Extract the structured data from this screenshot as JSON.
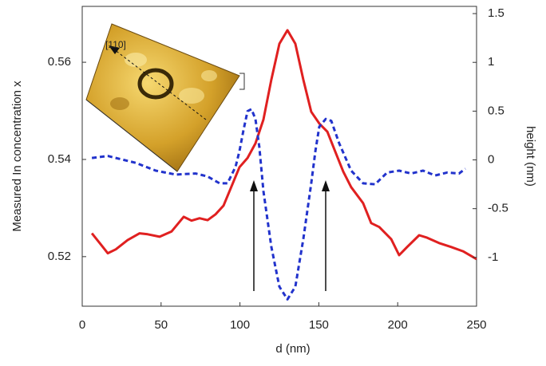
{
  "chart_data": {
    "type": "line",
    "xlabel": "d (nm)",
    "ylabel": "Measured In concentration x",
    "y2label": "height (nm)",
    "annotations": [
      "[110]"
    ],
    "xlim": [
      0,
      250
    ],
    "xticks": [
      0,
      50,
      100,
      150,
      200,
      250
    ],
    "ylim": [
      0.5098,
      0.5715
    ],
    "yticks": [
      0.52,
      0.54,
      0.56
    ],
    "y2lim": [
      -1.5,
      1.574
    ],
    "y2ticks": [
      -1,
      -0.5,
      0,
      0.5,
      1,
      1.5
    ],
    "grid": false,
    "series": [
      {
        "color": "#e02020",
        "line_style": "solid",
        "x": [
          6.1,
          11.1,
          16.2,
          21.3,
          28.8,
          36.4,
          41.5,
          49.1,
          56.7,
          64.3,
          69.3,
          74.4,
          79.5,
          84.5,
          89.6,
          94.6,
          99.7,
          104.8,
          109.8,
          114.9,
          119.9,
          125.0,
          130.1,
          135.1,
          140.2,
          145.2,
          150.3,
          155.4,
          160.4,
          165.5,
          170.5,
          178.1,
          183.2,
          188.3,
          195.9,
          200.9,
          206.0,
          213.6,
          218.6,
          226.2,
          233.8,
          241.4,
          250
        ],
        "values": [
          0.5248,
          0.5228,
          0.5207,
          0.5215,
          0.5234,
          0.5248,
          0.5246,
          0.5241,
          0.5252,
          0.5282,
          0.5274,
          0.5279,
          0.5275,
          0.5287,
          0.5305,
          0.5344,
          0.5384,
          0.5403,
          0.5433,
          0.5482,
          0.5564,
          0.5638,
          0.5666,
          0.5638,
          0.5564,
          0.5498,
          0.5474,
          0.5457,
          0.5416,
          0.5375,
          0.5343,
          0.531,
          0.5269,
          0.5261,
          0.5236,
          0.5203,
          0.522,
          0.5244,
          0.5239,
          0.5228,
          0.522,
          0.5211,
          0.5195
        ]
      },
      {
        "color": "#2233cc",
        "line_style": "dashed",
        "axis": "y2",
        "x": [
          6.1,
          16.2,
          23.8,
          33.9,
          46.6,
          59.2,
          71.9,
          79.5,
          87.1,
          92.1,
          97.2,
          99.7,
          102.2,
          104.8,
          107.3,
          109.8,
          112.3,
          114.9,
          119.9,
          125.0,
          130.1,
          135.1,
          140.2,
          145.2,
          147.8,
          150.3,
          154.4,
          157.9,
          162.9,
          170.5,
          178.1,
          185.7,
          193.3,
          200.9,
          208.5,
          216.1,
          223.7,
          231.3,
          238.9,
          242.9
        ],
        "values": [
          0.02,
          0.04,
          0.01,
          -0.03,
          -0.11,
          -0.15,
          -0.14,
          -0.17,
          -0.24,
          -0.24,
          -0.07,
          0.09,
          0.3,
          0.5,
          0.52,
          0.42,
          0.13,
          -0.32,
          -0.89,
          -1.3,
          -1.43,
          -1.3,
          -0.81,
          -0.24,
          0.09,
          0.34,
          0.42,
          0.4,
          0.17,
          -0.11,
          -0.24,
          -0.25,
          -0.13,
          -0.11,
          -0.14,
          -0.11,
          -0.16,
          -0.13,
          -0.14,
          -0.09
        ]
      }
    ]
  }
}
